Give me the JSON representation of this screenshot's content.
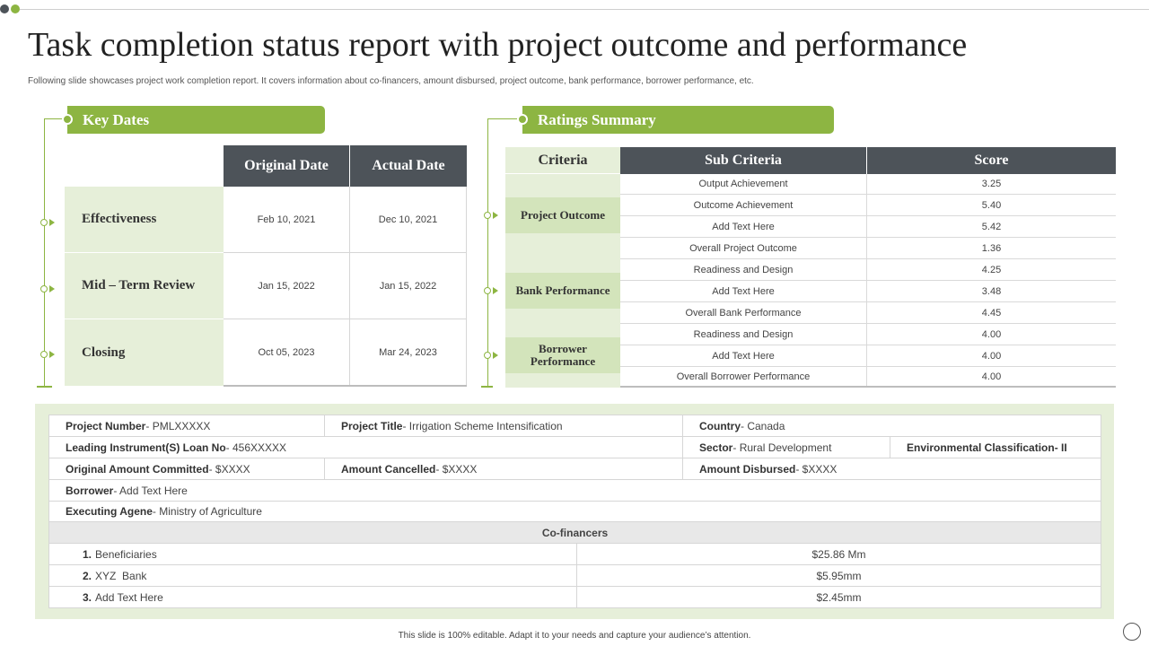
{
  "title": "Task completion status report with project outcome and performance",
  "subtitle": "Following slide showcases project work completion report. It covers information about co-financers, amount disbursed, project outcome, bank performance, borrower performance, etc.",
  "key_dates": {
    "header": "Key Dates",
    "columns": [
      "Original Date",
      "Actual Date"
    ],
    "rows": [
      {
        "label": "Effectiveness",
        "original": "Feb 10, 2021",
        "actual": "Dec 10, 2021"
      },
      {
        "label": "Mid – Term Review",
        "original": "Jan 15, 2022",
        "actual": "Jan 15, 2022"
      },
      {
        "label": "Closing",
        "original": "Oct 05, 2023",
        "actual": "Mar 24, 2023"
      }
    ]
  },
  "ratings": {
    "header": "Ratings Summary",
    "columns": [
      "Criteria",
      "Sub Criteria",
      "Score"
    ],
    "criteria": [
      "Project Outcome",
      "Bank Performance",
      "Borrower Performance"
    ],
    "rows": [
      {
        "sub": "Output Achievement",
        "score": "3.25"
      },
      {
        "sub": "Outcome Achievement",
        "score": "5.40"
      },
      {
        "sub": "Add Text Here",
        "score": "5.42"
      },
      {
        "sub": "Overall Project Outcome",
        "score": "1.36"
      },
      {
        "sub": "Readiness and Design",
        "score": "4.25"
      },
      {
        "sub": "Add Text Here",
        "score": "3.48"
      },
      {
        "sub": "Overall Bank Performance",
        "score": "4.45"
      },
      {
        "sub": "Readiness and Design",
        "score": "4.00"
      },
      {
        "sub": "Add Text Here",
        "score": "4.00"
      },
      {
        "sub": "Overall Borrower Performance",
        "score": "4.00"
      }
    ]
  },
  "project": {
    "project_number": {
      "key": "Project Number",
      "value": " - PMLXXXXX"
    },
    "project_title": {
      "key": "Project Title",
      "value": " - Irrigation Scheme Intensification"
    },
    "country": {
      "key": "Country",
      "value": " - Canada"
    },
    "loan_no": {
      "key": "Leading Instrument(S) Loan No",
      "value": " - 456XXXXX"
    },
    "sector": {
      "key": "Sector",
      "value": " - Rural Development"
    },
    "env_class": {
      "key": "Environmental Classification",
      "value": " - II"
    },
    "original_amount": {
      "key": "Original Amount Committed",
      "value": " - $XXXX"
    },
    "amount_cancelled": {
      "key": "Amount Cancelled",
      "value": " - $XXXX"
    },
    "amount_disbursed": {
      "key": "Amount Disbursed",
      "value": " - $XXXX"
    },
    "borrower": {
      "key": "Borrower",
      "value": " - Add Text Here"
    },
    "executing": {
      "key": "Executing Agene",
      "value": " - Ministry of Agriculture"
    }
  },
  "cofinancers": {
    "header": "Co-financers",
    "rows": [
      {
        "num": "1.",
        "name": "Beneficiaries",
        "amount": "$25.86 Mm"
      },
      {
        "num": "2.",
        "name": "XYZ  Bank",
        "amount": "$5.95mm"
      },
      {
        "num": "3.",
        "name": "Add Text Here",
        "amount": "$2.45mm"
      }
    ]
  },
  "footer": "This slide is 100% editable. Adapt it to your needs and capture your audience’s attention.",
  "colors": {
    "accent": "#8db542",
    "dark_header": "#4d5359",
    "light_green": "#e6efd9"
  }
}
